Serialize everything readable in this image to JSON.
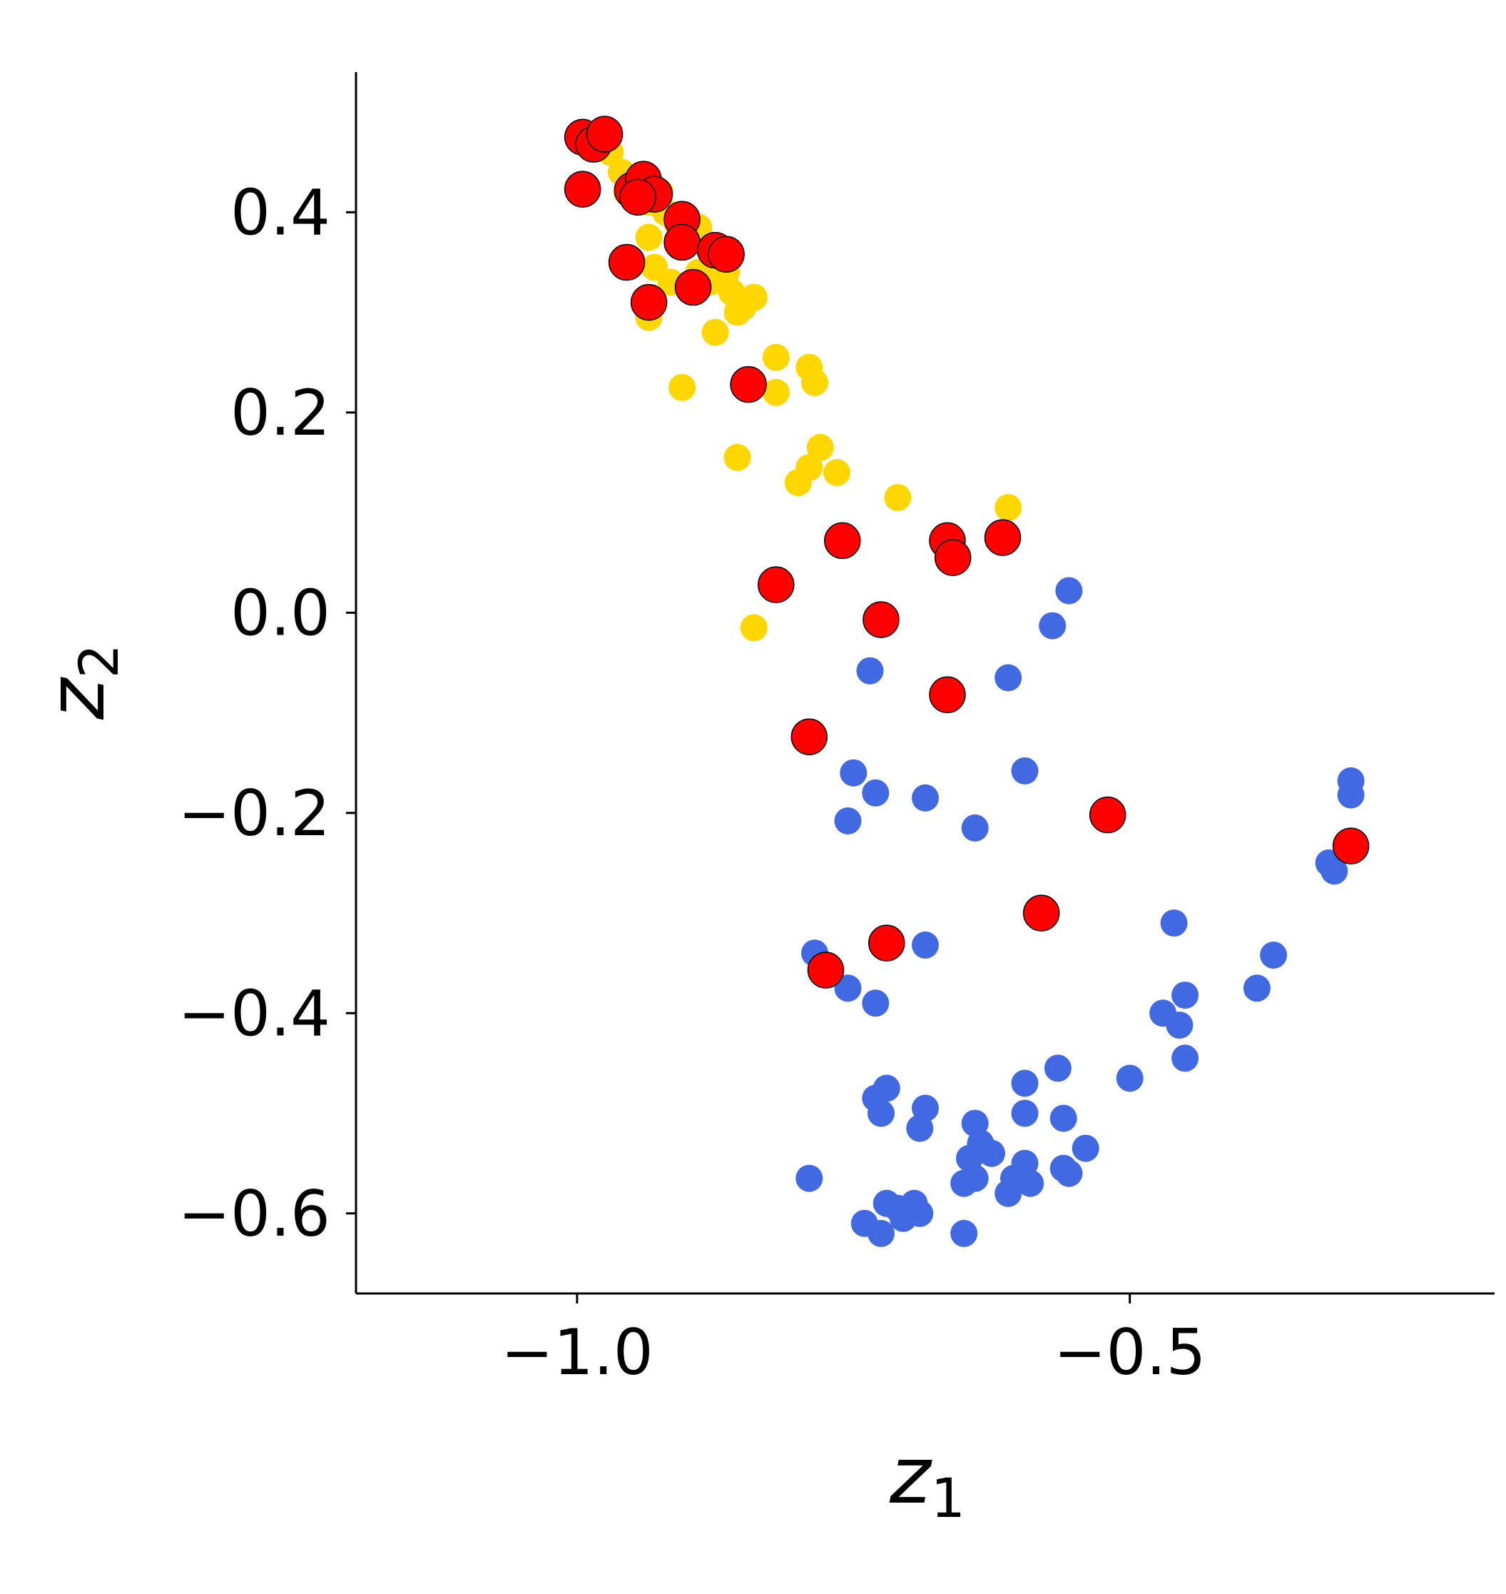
{
  "chart_data": {
    "type": "scatter",
    "title": "",
    "xlabel": "z",
    "xlabel_sub": "1",
    "ylabel": "z",
    "ylabel_sub": "2",
    "xlim": [
      -1.2,
      -0.17
    ],
    "ylim": [
      -0.68,
      0.54
    ],
    "x_ticks": [
      -1.0,
      -0.5
    ],
    "x_tick_labels": [
      "−1.0",
      "−0.5"
    ],
    "y_ticks": [
      0.4,
      0.2,
      0.0,
      -0.2,
      -0.4,
      -0.6
    ],
    "y_tick_labels": [
      "0.4",
      "0.2",
      "0.0",
      "−0.2",
      "−0.4",
      "−0.6"
    ],
    "grid": false,
    "legend": "none",
    "series": [
      {
        "color": "#ffd700",
        "marker_size": "small",
        "points": [
          [
            -0.97,
            0.46
          ],
          [
            -0.96,
            0.44
          ],
          [
            -0.955,
            0.42
          ],
          [
            -0.945,
            0.415
          ],
          [
            -0.935,
            0.41
          ],
          [
            -0.925,
            0.42
          ],
          [
            -0.92,
            0.4
          ],
          [
            -0.91,
            0.39
          ],
          [
            -0.9,
            0.38
          ],
          [
            -0.89,
            0.385
          ],
          [
            -0.885,
            0.37
          ],
          [
            -0.875,
            0.36
          ],
          [
            -0.935,
            0.375
          ],
          [
            -0.93,
            0.345
          ],
          [
            -0.915,
            0.33
          ],
          [
            -0.9,
            0.325
          ],
          [
            -0.89,
            0.34
          ],
          [
            -0.88,
            0.33
          ],
          [
            -0.865,
            0.34
          ],
          [
            -0.86,
            0.32
          ],
          [
            -0.85,
            0.305
          ],
          [
            -0.84,
            0.315
          ],
          [
            -0.935,
            0.295
          ],
          [
            -0.875,
            0.28
          ],
          [
            -0.855,
            0.3
          ],
          [
            -0.82,
            0.255
          ],
          [
            -0.82,
            0.22
          ],
          [
            -0.79,
            0.245
          ],
          [
            -0.785,
            0.23
          ],
          [
            -0.905,
            0.225
          ],
          [
            -0.855,
            0.155
          ],
          [
            -0.78,
            0.165
          ],
          [
            -0.79,
            0.145
          ],
          [
            -0.8,
            0.13
          ],
          [
            -0.765,
            0.14
          ],
          [
            -0.71,
            0.115
          ],
          [
            -0.61,
            0.105
          ],
          [
            -0.84,
            -0.015
          ]
        ]
      },
      {
        "color": "#4169e1",
        "marker_size": "small",
        "points": [
          [
            -0.555,
            0.022
          ],
          [
            -0.57,
            -0.013
          ],
          [
            -0.61,
            -0.065
          ],
          [
            -0.735,
            -0.058
          ],
          [
            -0.75,
            -0.16
          ],
          [
            -0.73,
            -0.18
          ],
          [
            -0.685,
            -0.185
          ],
          [
            -0.755,
            -0.208
          ],
          [
            -0.595,
            -0.158
          ],
          [
            -0.64,
            -0.215
          ],
          [
            -0.3,
            -0.168
          ],
          [
            -0.3,
            -0.182
          ],
          [
            -0.315,
            -0.258
          ],
          [
            -0.32,
            -0.25
          ],
          [
            -0.46,
            -0.31
          ],
          [
            -0.37,
            -0.342
          ],
          [
            -0.385,
            -0.375
          ],
          [
            -0.47,
            -0.4
          ],
          [
            -0.45,
            -0.382
          ],
          [
            -0.455,
            -0.412
          ],
          [
            -0.45,
            -0.445
          ],
          [
            -0.5,
            -0.465
          ],
          [
            -0.785,
            -0.34
          ],
          [
            -0.775,
            -0.355
          ],
          [
            -0.755,
            -0.375
          ],
          [
            -0.73,
            -0.39
          ],
          [
            -0.72,
            -0.33
          ],
          [
            -0.685,
            -0.332
          ],
          [
            -0.565,
            -0.455
          ],
          [
            -0.595,
            -0.47
          ],
          [
            -0.595,
            -0.5
          ],
          [
            -0.56,
            -0.505
          ],
          [
            -0.54,
            -0.535
          ],
          [
            -0.56,
            -0.555
          ],
          [
            -0.555,
            -0.56
          ],
          [
            -0.595,
            -0.55
          ],
          [
            -0.59,
            -0.57
          ],
          [
            -0.605,
            -0.565
          ],
          [
            -0.61,
            -0.58
          ],
          [
            -0.625,
            -0.54
          ],
          [
            -0.635,
            -0.53
          ],
          [
            -0.645,
            -0.545
          ],
          [
            -0.64,
            -0.565
          ],
          [
            -0.65,
            -0.57
          ],
          [
            -0.64,
            -0.51
          ],
          [
            -0.685,
            -0.495
          ],
          [
            -0.69,
            -0.515
          ],
          [
            -0.73,
            -0.485
          ],
          [
            -0.72,
            -0.475
          ],
          [
            -0.725,
            -0.5
          ],
          [
            -0.79,
            -0.565
          ],
          [
            -0.74,
            -0.61
          ],
          [
            -0.725,
            -0.62
          ],
          [
            -0.72,
            -0.59
          ],
          [
            -0.71,
            -0.595
          ],
          [
            -0.705,
            -0.605
          ],
          [
            -0.695,
            -0.59
          ],
          [
            -0.69,
            -0.6
          ],
          [
            -0.65,
            -0.62
          ]
        ]
      },
      {
        "color": "#ff0000",
        "marker_size": "large",
        "points": [
          [
            -0.995,
            0.475
          ],
          [
            -0.985,
            0.468
          ],
          [
            -0.975,
            0.478
          ],
          [
            -0.995,
            0.423
          ],
          [
            -0.95,
            0.422
          ],
          [
            -0.94,
            0.433
          ],
          [
            -0.93,
            0.418
          ],
          [
            -0.945,
            0.415
          ],
          [
            -0.905,
            0.393
          ],
          [
            -0.905,
            0.37
          ],
          [
            -0.875,
            0.362
          ],
          [
            -0.865,
            0.358
          ],
          [
            -0.955,
            0.35
          ],
          [
            -0.935,
            0.31
          ],
          [
            -0.895,
            0.325
          ],
          [
            -0.845,
            0.228
          ],
          [
            -0.76,
            0.072
          ],
          [
            -0.665,
            0.072
          ],
          [
            -0.66,
            0.055
          ],
          [
            -0.615,
            0.075
          ],
          [
            -0.82,
            0.028
          ],
          [
            -0.725,
            -0.007
          ],
          [
            -0.665,
            -0.082
          ],
          [
            -0.79,
            -0.124
          ],
          [
            -0.52,
            -0.202
          ],
          [
            -0.3,
            -0.233
          ],
          [
            -0.58,
            -0.3
          ],
          [
            -0.72,
            -0.33
          ],
          [
            -0.775,
            -0.357
          ]
        ]
      }
    ]
  }
}
